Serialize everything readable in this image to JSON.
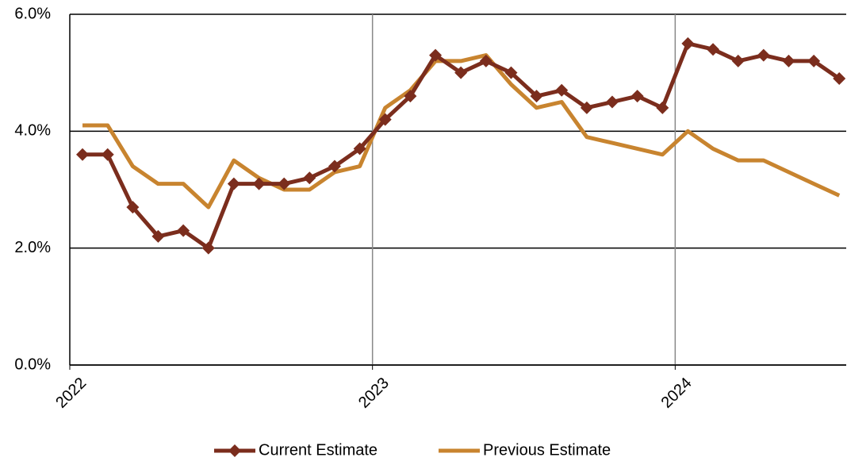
{
  "chart_data": {
    "type": "line",
    "x": [
      2022.042,
      2022.125,
      2022.208,
      2022.292,
      2022.375,
      2022.458,
      2022.542,
      2022.625,
      2022.708,
      2022.792,
      2022.875,
      2022.958,
      2023.042,
      2023.125,
      2023.208,
      2023.292,
      2023.375,
      2023.458,
      2023.542,
      2023.625,
      2023.708,
      2023.792,
      2023.875,
      2023.958,
      2024.042,
      2024.125,
      2024.208,
      2024.292,
      2024.375,
      2024.458,
      2024.542
    ],
    "series": [
      {
        "name": "Current Estimate",
        "color": "#7b2d1d",
        "marker": "diamond",
        "values": [
          3.6,
          3.6,
          2.7,
          2.2,
          2.3,
          2.0,
          3.1,
          3.1,
          3.1,
          3.2,
          3.4,
          3.7,
          4.2,
          4.6,
          5.3,
          5.0,
          5.2,
          5.0,
          4.6,
          4.7,
          4.4,
          4.5,
          4.6,
          4.4,
          5.5,
          5.4,
          5.2,
          5.3,
          5.2,
          5.2,
          4.9
        ]
      },
      {
        "name": "Previous Estimate",
        "color": "#c8842f",
        "values": [
          4.1,
          4.1,
          3.4,
          3.1,
          3.1,
          2.7,
          3.5,
          3.2,
          3.0,
          3.0,
          3.3,
          3.4,
          4.4,
          4.7,
          5.2,
          5.2,
          5.3,
          4.8,
          4.4,
          4.5,
          3.9,
          3.8,
          3.7,
          3.6,
          4.0,
          3.7,
          3.5,
          3.5,
          3.3,
          3.1,
          2.9
        ]
      }
    ],
    "xlim": [
      2022,
      2024.565
    ],
    "xticks": [
      2022,
      2023,
      2024
    ],
    "ylim": [
      0,
      6
    ],
    "yticks": [
      {
        "value": 0,
        "label": "0.0%"
      },
      {
        "value": 2,
        "label": "2.0%"
      },
      {
        "value": 4,
        "label": "4.0%"
      },
      {
        "value": 6,
        "label": "6.0%"
      }
    ],
    "grid": true,
    "legend": "bottom"
  }
}
